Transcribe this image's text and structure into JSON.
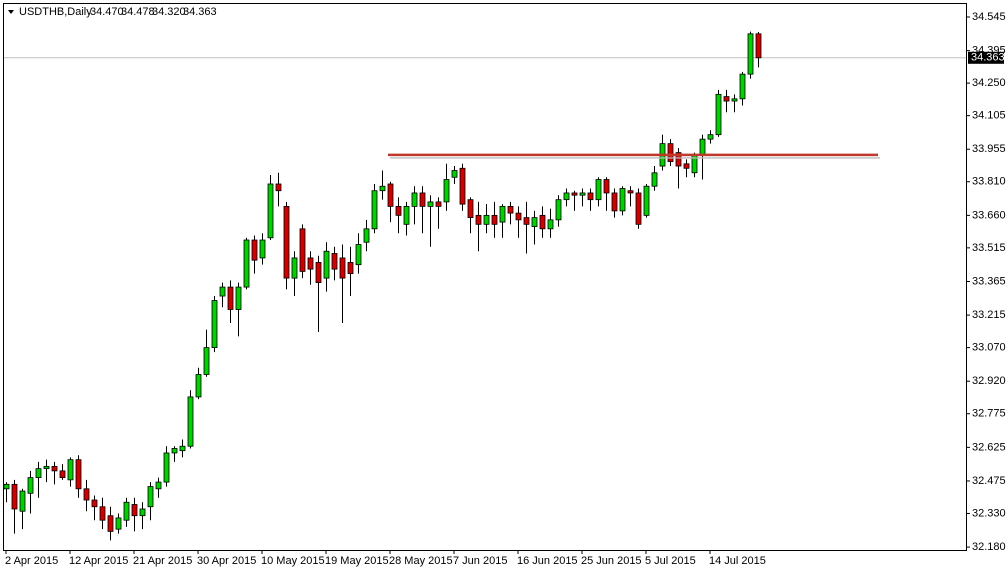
{
  "chart_data": {
    "type": "candlestick",
    "header": {
      "symbol": "USDTHB,Daily",
      "ohlc": [
        "34.470",
        "34.478",
        "34.320",
        "34.363"
      ]
    },
    "categories": [
      "2 Apr 2015",
      null,
      null,
      null,
      null,
      null,
      null,
      null,
      "12 Apr 2015",
      null,
      null,
      null,
      null,
      null,
      null,
      null,
      "21 Apr 2015",
      null,
      null,
      null,
      null,
      null,
      null,
      null,
      "30 Apr 2015",
      null,
      null,
      null,
      null,
      null,
      null,
      null,
      "10 May 2015",
      null,
      null,
      null,
      null,
      null,
      null,
      null,
      "19 May 2015",
      null,
      null,
      null,
      null,
      null,
      null,
      null,
      "28 May 2015",
      null,
      null,
      null,
      null,
      null,
      null,
      null,
      "7 Jun 2015",
      null,
      null,
      null,
      null,
      null,
      null,
      null,
      "16 Jun 2015",
      null,
      null,
      null,
      null,
      null,
      null,
      null,
      "25 Jun 2015",
      null,
      null,
      null,
      null,
      null,
      null,
      null,
      "5 Jul 2015",
      null,
      null,
      null,
      null,
      null,
      null,
      null,
      "14 Jul 2015",
      null,
      null,
      null,
      null,
      null,
      null
    ],
    "candles": [
      [
        32.44,
        32.47,
        32.38,
        32.46
      ],
      [
        32.46,
        32.48,
        32.24,
        32.35
      ],
      [
        32.34,
        32.44,
        32.26,
        32.43
      ],
      [
        32.42,
        32.52,
        32.33,
        32.49
      ],
      [
        32.49,
        32.56,
        32.4,
        32.53
      ],
      [
        32.53,
        32.57,
        32.47,
        32.54
      ],
      [
        32.54,
        32.56,
        32.46,
        32.52
      ],
      [
        32.52,
        32.55,
        32.48,
        32.49
      ],
      [
        32.48,
        32.58,
        32.45,
        32.57
      ],
      [
        32.57,
        32.59,
        32.4,
        32.44
      ],
      [
        32.44,
        32.48,
        32.34,
        32.39
      ],
      [
        32.39,
        32.41,
        32.3,
        32.36
      ],
      [
        32.36,
        32.4,
        32.26,
        32.3
      ],
      [
        32.32,
        32.36,
        32.21,
        32.25
      ],
      [
        32.26,
        32.33,
        32.24,
        32.31
      ],
      [
        32.3,
        32.4,
        32.27,
        32.38
      ],
      [
        32.37,
        32.4,
        32.25,
        32.32
      ],
      [
        32.32,
        32.38,
        32.26,
        32.35
      ],
      [
        32.36,
        32.47,
        32.3,
        32.45
      ],
      [
        32.44,
        32.49,
        32.4,
        32.47
      ],
      [
        32.47,
        32.63,
        32.45,
        32.6
      ],
      [
        32.6,
        32.63,
        32.56,
        32.62
      ],
      [
        32.61,
        32.66,
        32.58,
        32.63
      ],
      [
        32.63,
        32.88,
        32.62,
        32.85
      ],
      [
        32.85,
        32.98,
        32.84,
        32.95
      ],
      [
        32.95,
        33.15,
        32.94,
        33.07
      ],
      [
        33.07,
        33.3,
        33.05,
        33.28
      ],
      [
        33.3,
        33.36,
        33.25,
        33.34
      ],
      [
        33.34,
        33.37,
        33.18,
        33.24
      ],
      [
        33.24,
        33.36,
        33.12,
        33.34
      ],
      [
        33.34,
        33.56,
        33.33,
        33.55
      ],
      [
        33.55,
        33.57,
        33.4,
        33.46
      ],
      [
        33.47,
        33.58,
        33.44,
        33.55
      ],
      [
        33.56,
        33.84,
        33.55,
        33.8
      ],
      [
        33.8,
        33.85,
        33.7,
        33.77
      ],
      [
        33.7,
        33.72,
        33.33,
        33.38
      ],
      [
        33.38,
        33.5,
        33.3,
        33.47
      ],
      [
        33.6,
        33.62,
        33.38,
        33.41
      ],
      [
        33.47,
        33.5,
        33.35,
        33.42
      ],
      [
        33.45,
        33.48,
        33.14,
        33.36
      ],
      [
        33.38,
        33.54,
        33.32,
        33.5
      ],
      [
        33.49,
        33.52,
        33.37,
        33.42
      ],
      [
        33.47,
        33.53,
        33.18,
        33.38
      ],
      [
        33.45,
        33.52,
        33.3,
        33.4
      ],
      [
        33.44,
        33.58,
        33.4,
        33.53
      ],
      [
        33.54,
        33.64,
        33.5,
        33.6
      ],
      [
        33.6,
        33.8,
        33.58,
        33.77
      ],
      [
        33.77,
        33.86,
        33.73,
        33.79
      ],
      [
        33.8,
        33.81,
        33.63,
        33.7
      ],
      [
        33.7,
        33.74,
        33.58,
        33.66
      ],
      [
        33.62,
        33.72,
        33.57,
        33.7
      ],
      [
        33.7,
        33.79,
        33.62,
        33.76
      ],
      [
        33.76,
        33.79,
        33.58,
        33.7
      ],
      [
        33.7,
        33.75,
        33.52,
        33.72
      ],
      [
        33.72,
        33.74,
        33.6,
        33.7
      ],
      [
        33.72,
        33.89,
        33.68,
        33.82
      ],
      [
        33.83,
        33.88,
        33.8,
        33.86
      ],
      [
        33.87,
        33.89,
        33.68,
        33.71
      ],
      [
        33.73,
        33.74,
        33.58,
        33.65
      ],
      [
        33.66,
        33.72,
        33.5,
        33.62
      ],
      [
        33.62,
        33.71,
        33.58,
        33.66
      ],
      [
        33.66,
        33.72,
        33.56,
        33.62
      ],
      [
        33.63,
        33.71,
        33.56,
        33.7
      ],
      [
        33.7,
        33.72,
        33.62,
        33.67
      ],
      [
        33.67,
        33.7,
        33.56,
        33.64
      ],
      [
        33.65,
        33.72,
        33.49,
        33.62
      ],
      [
        33.61,
        33.68,
        33.53,
        33.65
      ],
      [
        33.66,
        33.7,
        33.56,
        33.6
      ],
      [
        33.6,
        33.69,
        33.56,
        33.64
      ],
      [
        33.64,
        33.75,
        33.61,
        33.73
      ],
      [
        33.73,
        33.78,
        33.7,
        33.76
      ],
      [
        33.76,
        33.77,
        33.68,
        33.75
      ],
      [
        33.75,
        33.78,
        33.7,
        33.76
      ],
      [
        33.76,
        33.78,
        33.68,
        33.73
      ],
      [
        33.73,
        33.83,
        33.7,
        33.82
      ],
      [
        33.82,
        33.83,
        33.68,
        33.76
      ],
      [
        33.76,
        33.78,
        33.65,
        33.68
      ],
      [
        33.68,
        33.79,
        33.66,
        33.78
      ],
      [
        33.77,
        33.79,
        33.7,
        33.76
      ],
      [
        33.76,
        33.78,
        33.6,
        33.62
      ],
      [
        33.66,
        33.8,
        33.65,
        33.79
      ],
      [
        33.79,
        33.88,
        33.77,
        33.85
      ],
      [
        33.88,
        34.02,
        33.86,
        33.98
      ],
      [
        33.98,
        34.0,
        33.88,
        33.9
      ],
      [
        33.94,
        33.96,
        33.78,
        33.88
      ],
      [
        33.89,
        33.91,
        33.83,
        33.87
      ],
      [
        33.85,
        33.94,
        33.83,
        33.93
      ],
      [
        33.93,
        34.02,
        33.82,
        34.0
      ],
      [
        34.0,
        34.04,
        33.98,
        34.02
      ],
      [
        34.02,
        34.22,
        34.01,
        34.2
      ],
      [
        34.19,
        34.22,
        34.12,
        34.17
      ],
      [
        34.17,
        34.2,
        34.12,
        34.18
      ],
      [
        34.18,
        34.3,
        34.15,
        34.29
      ],
      [
        34.29,
        34.48,
        34.27,
        34.47
      ],
      [
        34.47,
        34.478,
        34.32,
        34.363
      ]
    ],
    "up_color": "#00d000",
    "down_color": "#d00000",
    "ylim": [
      32.167,
      34.603
    ],
    "yticks": [
      {
        "value": 32.18,
        "label": "32.180"
      },
      {
        "value": 32.33,
        "label": "32.330"
      },
      32.475,
      32.625,
      32.775,
      {
        "value": 32.92,
        "label": "32.920"
      },
      {
        "value": 33.07,
        "label": "33.070"
      },
      33.215,
      33.365,
      33.515,
      {
        "value": 33.66,
        "label": "33.660"
      },
      {
        "value": 33.81,
        "label": "33.810"
      },
      33.955,
      34.105,
      {
        "value": 34.25,
        "label": "34.250"
      },
      34.395,
      34.545
    ],
    "current_price": {
      "value": 34.363,
      "label": "34.363"
    },
    "resistance_line": {
      "value": 33.93,
      "color": "#c0392b"
    }
  }
}
